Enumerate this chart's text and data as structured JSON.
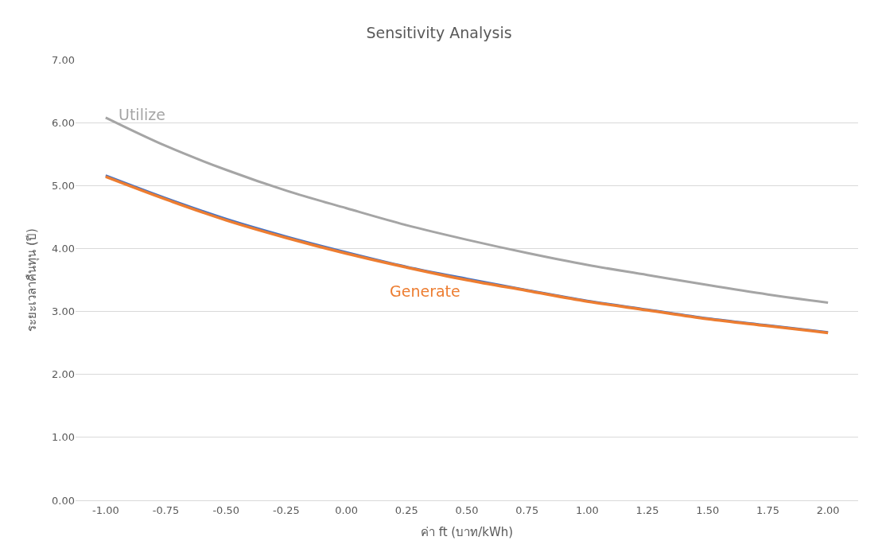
{
  "chart_data": {
    "type": "line",
    "title": "Sensitivity Analysis",
    "xlabel": "ค่า ft (บาท/kWh)",
    "ylabel": "ระยะเวลาคืนทุน (ปี)",
    "categories": [
      "-1.00",
      "-0.75",
      "-0.50",
      "-0.25",
      "0.00",
      "0.25",
      "0.50",
      "0.75",
      "1.00",
      "1.25",
      "1.50",
      "1.75",
      "2.00"
    ],
    "series": [
      {
        "color": "#4472c4",
        "values": [
          5.16,
          4.8,
          4.47,
          4.19,
          3.94,
          3.71,
          3.52,
          3.34,
          3.17,
          3.03,
          2.89,
          2.78,
          2.67
        ]
      },
      {
        "name": "Generate",
        "color": "#ed7d31",
        "values": [
          5.14,
          4.78,
          4.45,
          4.17,
          3.92,
          3.7,
          3.5,
          3.33,
          3.16,
          3.02,
          2.88,
          2.77,
          2.66
        ]
      },
      {
        "name": "Utilize",
        "color": "#a5a5a5",
        "values": [
          6.08,
          5.63,
          5.25,
          4.92,
          4.64,
          4.37,
          4.14,
          3.93,
          3.74,
          3.58,
          3.42,
          3.27,
          3.14
        ]
      }
    ],
    "ylim": [
      0,
      7
    ],
    "yticks": [
      {
        "value": 0,
        "label": "0.00"
      },
      {
        "value": 1,
        "label": "1.00"
      },
      {
        "value": 2,
        "label": "2.00"
      },
      {
        "value": 3,
        "label": "3.00"
      },
      {
        "value": 4,
        "label": "4.00"
      },
      {
        "value": 5,
        "label": "5.00"
      },
      {
        "value": 6,
        "label": "6.00"
      },
      {
        "value": 7,
        "label": "7.00"
      }
    ],
    "grid": "y",
    "legend": false,
    "marker": "none",
    "line_style": "solid"
  }
}
